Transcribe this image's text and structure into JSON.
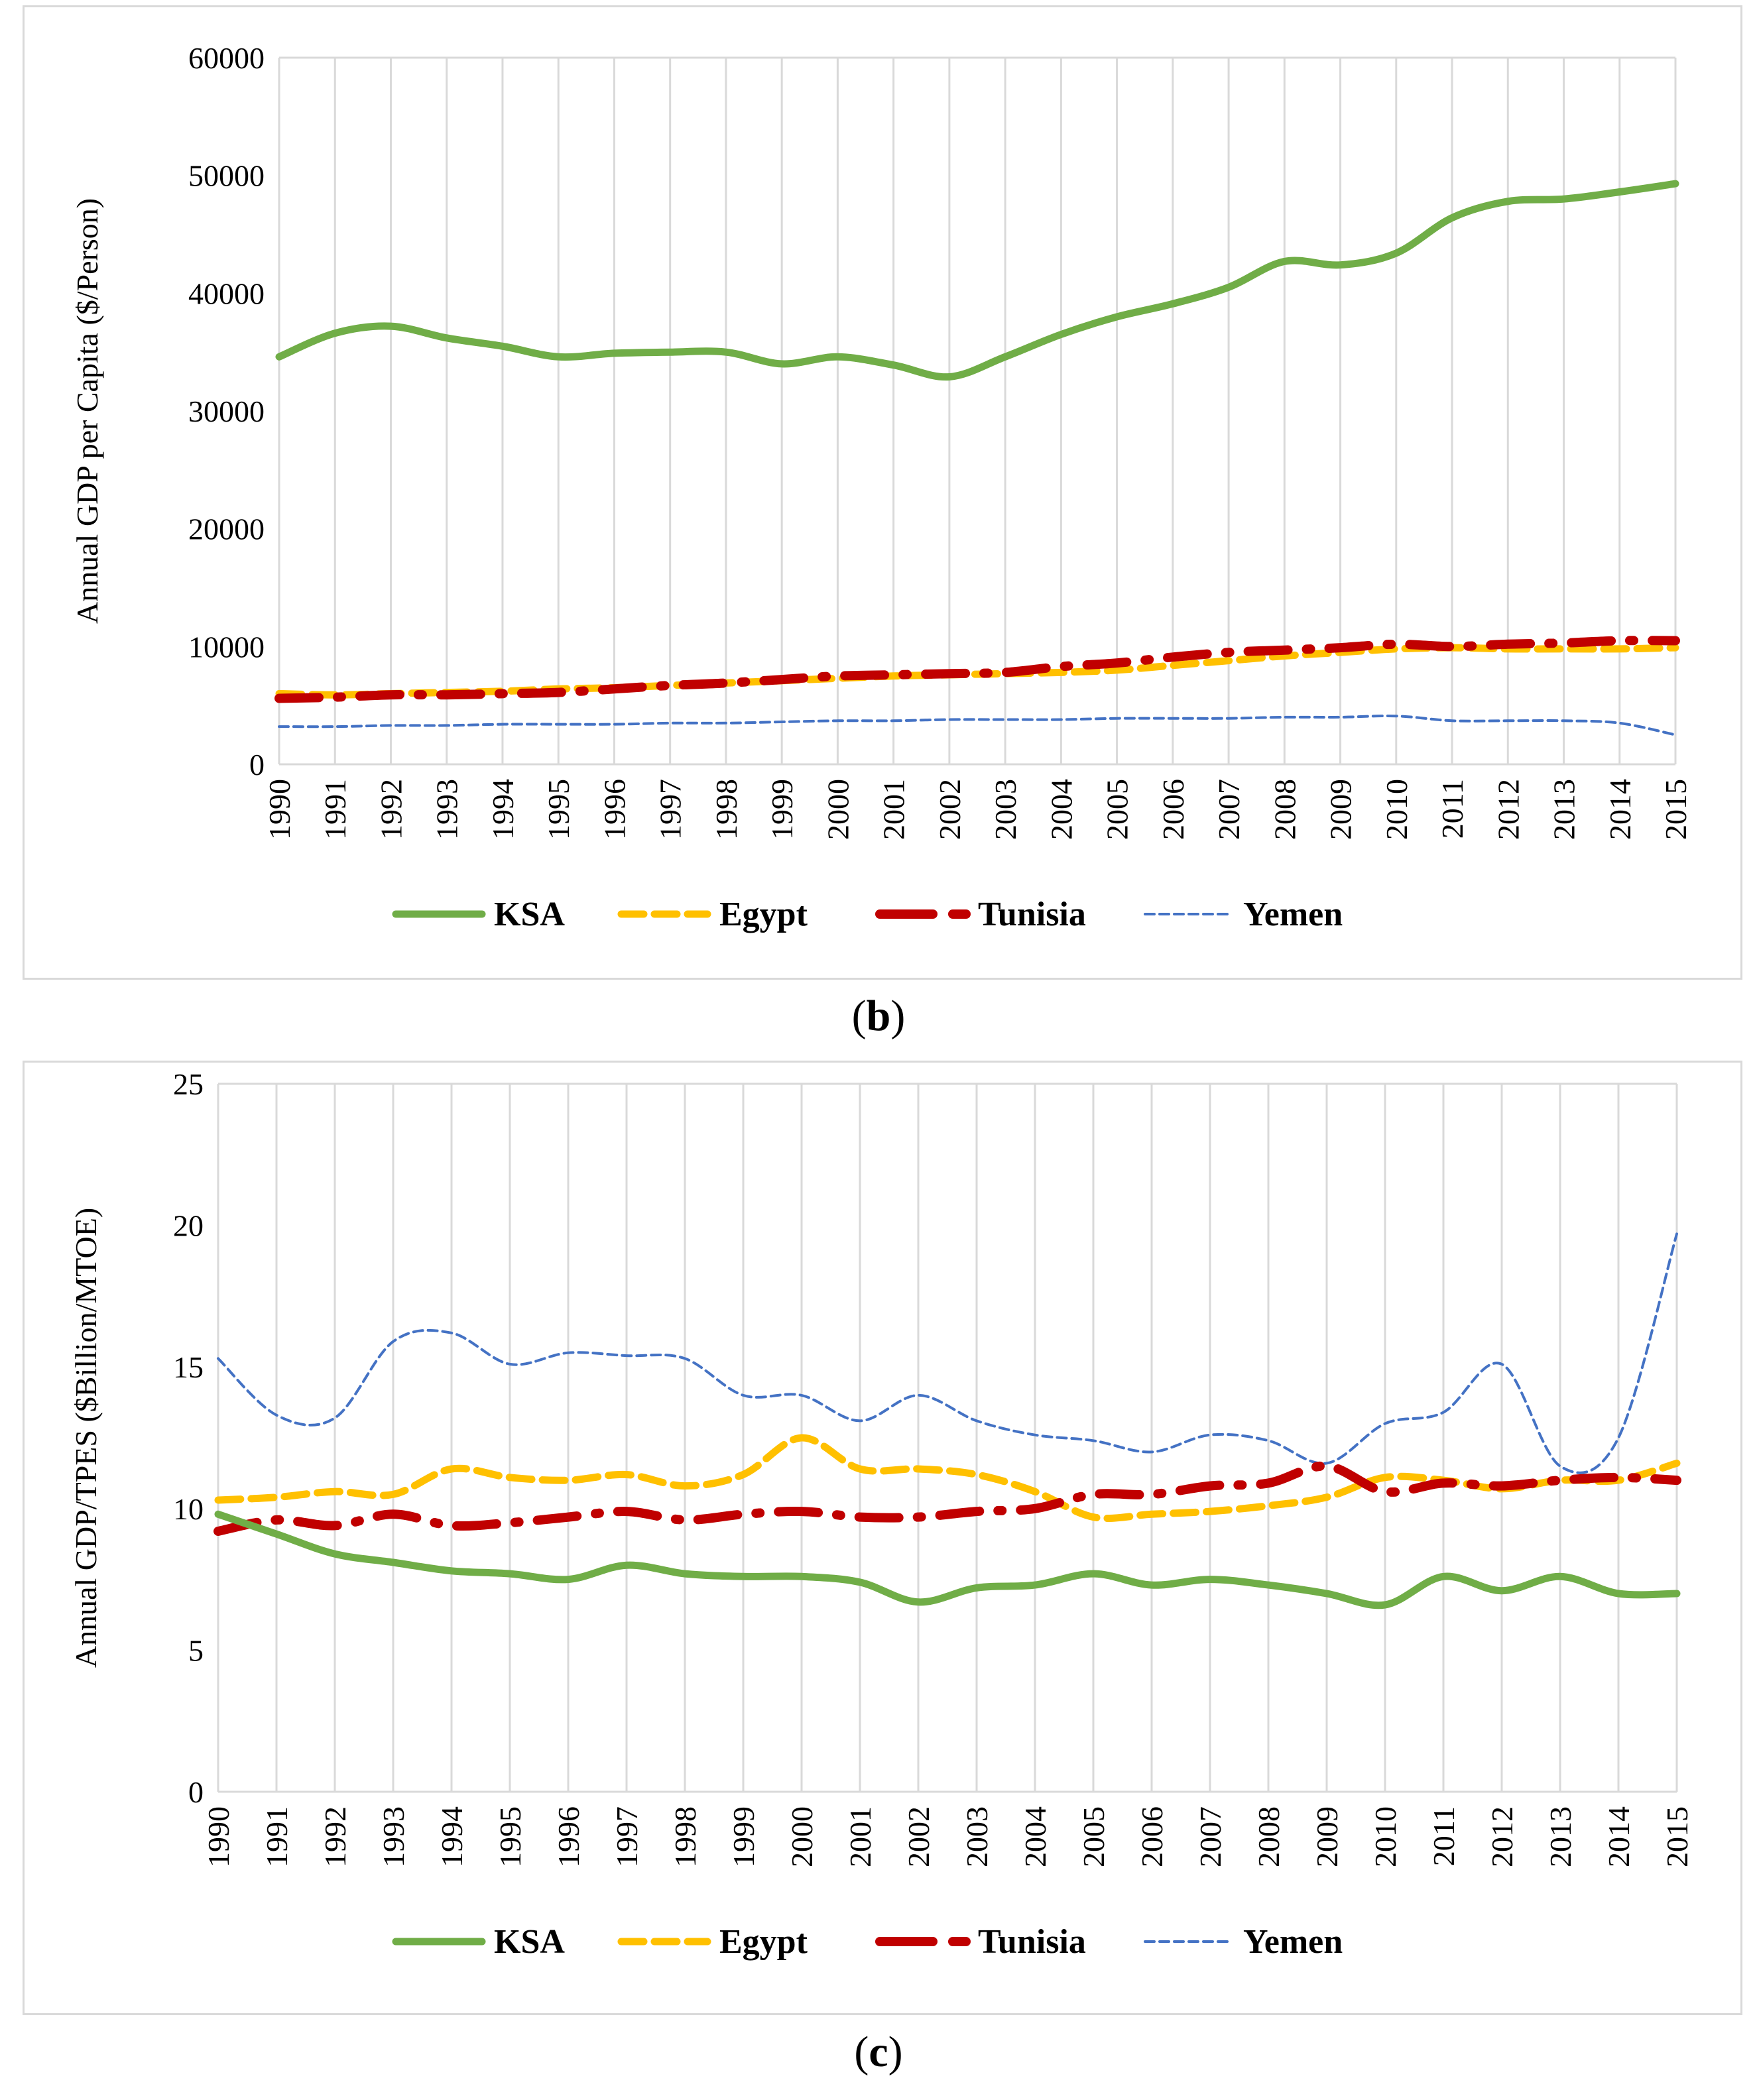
{
  "chart_data": [
    {
      "type": "line",
      "ylabel": "Annual GDP per Capita ($/Person)",
      "xlabel": "",
      "ylim": [
        0,
        60000
      ],
      "yticks": [
        "0",
        "10000",
        "20000",
        "30000",
        "40000",
        "50000",
        "60000"
      ],
      "x": [
        "1990",
        "1991",
        "1992",
        "1993",
        "1994",
        "1995",
        "1996",
        "1997",
        "1998",
        "1999",
        "2000",
        "2001",
        "2002",
        "2003",
        "2004",
        "2005",
        "2006",
        "2007",
        "2008",
        "2009",
        "2010",
        "2011",
        "2012",
        "2013",
        "2014",
        "2015"
      ],
      "grid": "vertical",
      "legend": "bottom",
      "caption_label": "b",
      "series": [
        {
          "name": "KSA",
          "color": "#70ad47",
          "style": "solid",
          "values": [
            34600,
            36600,
            37200,
            36200,
            35500,
            34600,
            34900,
            35000,
            35000,
            34000,
            34600,
            33900,
            32900,
            34600,
            36500,
            38000,
            39100,
            40500,
            42700,
            42400,
            43400,
            46400,
            47800,
            48000,
            48600,
            49300
          ]
        },
        {
          "name": "Egypt",
          "color": "#ffc000",
          "style": "dash",
          "values": [
            6000,
            5900,
            6000,
            6100,
            6200,
            6400,
            6500,
            6700,
            6900,
            7100,
            7300,
            7500,
            7600,
            7700,
            7800,
            8000,
            8400,
            8800,
            9200,
            9500,
            9800,
            9900,
            9800,
            9800,
            9800,
            9900
          ]
        },
        {
          "name": "Tunisia",
          "color": "#c00000",
          "style": "dashdot",
          "values": [
            5600,
            5700,
            5900,
            5900,
            6000,
            6100,
            6400,
            6700,
            6900,
            7200,
            7500,
            7600,
            7700,
            7800,
            8300,
            8600,
            9100,
            9500,
            9700,
            9900,
            10200,
            10000,
            10200,
            10300,
            10500,
            10500
          ]
        },
        {
          "name": "Yemen",
          "color": "#4472c4",
          "style": "dot",
          "values": [
            3200,
            3200,
            3300,
            3300,
            3400,
            3400,
            3400,
            3500,
            3500,
            3600,
            3700,
            3700,
            3800,
            3800,
            3800,
            3900,
            3900,
            3900,
            4000,
            4000,
            4100,
            3700,
            3700,
            3700,
            3500,
            2500
          ]
        }
      ]
    },
    {
      "type": "line",
      "ylabel": "Annual GDP/TPES ($Billion/MTOE)",
      "xlabel": "",
      "ylim": [
        0,
        25
      ],
      "yticks": [
        "0",
        "5",
        "10",
        "15",
        "20",
        "25"
      ],
      "x": [
        "1990",
        "1991",
        "1992",
        "1993",
        "1994",
        "1995",
        "1996",
        "1997",
        "1998",
        "1999",
        "2000",
        "2001",
        "2002",
        "2003",
        "2004",
        "2005",
        "2006",
        "2007",
        "2008",
        "2009",
        "2010",
        "2011",
        "2012",
        "2013",
        "2014",
        "2015"
      ],
      "grid": "vertical",
      "legend": "bottom",
      "caption_label": "c",
      "series": [
        {
          "name": "KSA",
          "color": "#70ad47",
          "style": "solid",
          "values": [
            9.8,
            9.1,
            8.4,
            8.1,
            7.8,
            7.7,
            7.5,
            8.0,
            7.7,
            7.6,
            7.6,
            7.4,
            6.7,
            7.2,
            7.3,
            7.7,
            7.3,
            7.5,
            7.3,
            7.0,
            6.6,
            7.6,
            7.1,
            7.6,
            7.0,
            7.0
          ]
        },
        {
          "name": "Egypt",
          "color": "#ffc000",
          "style": "dash",
          "values": [
            10.3,
            10.4,
            10.6,
            10.5,
            11.4,
            11.1,
            11.0,
            11.2,
            10.8,
            11.2,
            12.5,
            11.4,
            11.4,
            11.2,
            10.6,
            9.7,
            9.8,
            9.9,
            10.1,
            10.4,
            11.1,
            11.0,
            10.7,
            11.0,
            11.0,
            11.6
          ]
        },
        {
          "name": "Tunisia",
          "color": "#c00000",
          "style": "dashdot",
          "values": [
            9.2,
            9.6,
            9.4,
            9.8,
            9.4,
            9.5,
            9.7,
            9.9,
            9.6,
            9.8,
            9.9,
            9.7,
            9.7,
            9.9,
            10.0,
            10.5,
            10.5,
            10.8,
            10.9,
            11.5,
            10.6,
            10.9,
            10.8,
            11.0,
            11.1,
            11.0
          ]
        },
        {
          "name": "Yemen",
          "color": "#4472c4",
          "style": "dot",
          "values": [
            15.3,
            13.3,
            13.2,
            15.9,
            16.2,
            15.1,
            15.5,
            15.4,
            15.3,
            14.0,
            14.0,
            13.1,
            14.0,
            13.1,
            12.6,
            12.4,
            12.0,
            12.6,
            12.4,
            11.6,
            13.0,
            13.4,
            15.1,
            11.5,
            12.5,
            19.7
          ]
        }
      ]
    }
  ]
}
